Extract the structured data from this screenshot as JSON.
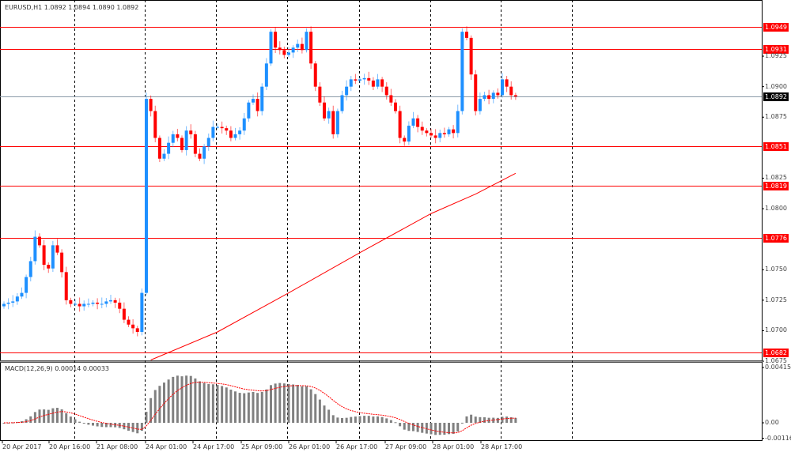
{
  "header": {
    "title": "EURUSD,H1  1.0892 1.0894 1.0890 1.0892"
  },
  "colors": {
    "bull": "#1e90ff",
    "bear": "#ff0000",
    "level": "#ff0000",
    "current": "#8a9aa8",
    "ma": "#ff0000",
    "histogram": "#808080"
  },
  "levels": [
    {
      "price": 1.0949,
      "label": "1.0949"
    },
    {
      "price": 1.0931,
      "label": "1.0931"
    },
    {
      "price": 1.0851,
      "label": "1.0851"
    },
    {
      "price": 1.0819,
      "label": "1.0819"
    },
    {
      "price": 1.0776,
      "label": "1.0776"
    },
    {
      "price": 1.0682,
      "label": "1.0682"
    }
  ],
  "current_price": {
    "price": 1.0892,
    "label": "1.0892"
  },
  "price_ticks": [
    {
      "price": 1.0925,
      "label": "1.0925"
    },
    {
      "price": 1.09,
      "label": "1.0900"
    },
    {
      "price": 1.0875,
      "label": "1.0875"
    },
    {
      "price": 1.0825,
      "label": "1.0825"
    },
    {
      "price": 1.08,
      "label": "1.0800"
    },
    {
      "price": 1.075,
      "label": "1.0750"
    },
    {
      "price": 1.0725,
      "label": "1.0725"
    },
    {
      "price": 1.07,
      "label": "1.0700"
    },
    {
      "price": 1.0675,
      "label": "1.0675"
    }
  ],
  "time_labels": [
    "20 Apr 2017",
    "20 Apr 16:00",
    "21 Apr 08:00",
    "24 Apr 01:00",
    "24 Apr 17:00",
    "25 Apr 09:00",
    "26 Apr 01:00",
    "26 Apr 17:00",
    "27 Apr 09:00",
    "28 Apr 01:00",
    "28 Apr 17:00"
  ],
  "macd": {
    "label": "MACD(12,26,9) 0.00014 0.00033",
    "ticks": [
      {
        "value": 0.00415,
        "label": "0.00415"
      },
      {
        "value": 0,
        "label": "0.00"
      },
      {
        "value": -0.00116,
        "label": "-0.00116"
      }
    ]
  },
  "chart_data": {
    "type": "candlestick",
    "symbol": "EURUSD",
    "timeframe": "H1",
    "closes": [
      1.0722,
      1.0723,
      1.0724,
      1.0728,
      1.0731,
      1.0744,
      1.0757,
      1.0777,
      1.077,
      1.0754,
      1.0751,
      1.077,
      1.0764,
      1.0748,
      1.0725,
      1.0722,
      1.0722,
      1.072,
      1.0722,
      1.0722,
      1.0723,
      1.0722,
      1.0722,
      1.0724,
      1.0725,
      1.0723,
      1.0718,
      1.0709,
      1.0705,
      1.0702,
      1.0699,
      1.0731,
      1.089,
      1.088,
      1.0858,
      1.0841,
      1.0845,
      1.0854,
      1.0861,
      1.0858,
      1.0848,
      1.0864,
      1.0861,
      1.0845,
      1.0841,
      1.0851,
      1.0858,
      1.0867,
      1.0867,
      1.0866,
      1.0864,
      1.0858,
      1.0861,
      1.0864,
      1.0874,
      1.0887,
      1.089,
      1.088,
      1.09,
      1.0919,
      1.0945,
      1.0932,
      1.093,
      1.0926,
      1.0928,
      1.0932,
      1.0935,
      1.093,
      1.0945,
      1.0919,
      1.09,
      1.0887,
      1.0874,
      1.088,
      1.0861,
      1.088,
      1.0893,
      1.09,
      1.0906,
      1.0905,
      1.0906,
      1.0907,
      1.0905,
      1.09,
      1.0906,
      1.09,
      1.0893,
      1.0887,
      1.088,
      1.0858,
      1.0855,
      1.0868,
      1.0874,
      1.0867,
      1.0864,
      1.0862,
      1.086,
      1.0858,
      1.0862,
      1.0861,
      1.0865,
      1.0862,
      1.088,
      1.0945,
      1.094,
      1.091,
      1.088,
      1.089,
      1.0893,
      1.089,
      1.0895,
      1.0893,
      1.0906,
      1.09,
      1.0893,
      1.0892
    ],
    "moving_average": [
      [
        33,
        1.0676
      ],
      [
        48,
        1.0699
      ],
      [
        64,
        1.0731
      ],
      [
        80,
        1.0764
      ],
      [
        96,
        1.0796
      ],
      [
        106,
        1.0812
      ],
      [
        115,
        1.0829
      ]
    ],
    "ylim": [
      1.067,
      1.0965
    ]
  }
}
